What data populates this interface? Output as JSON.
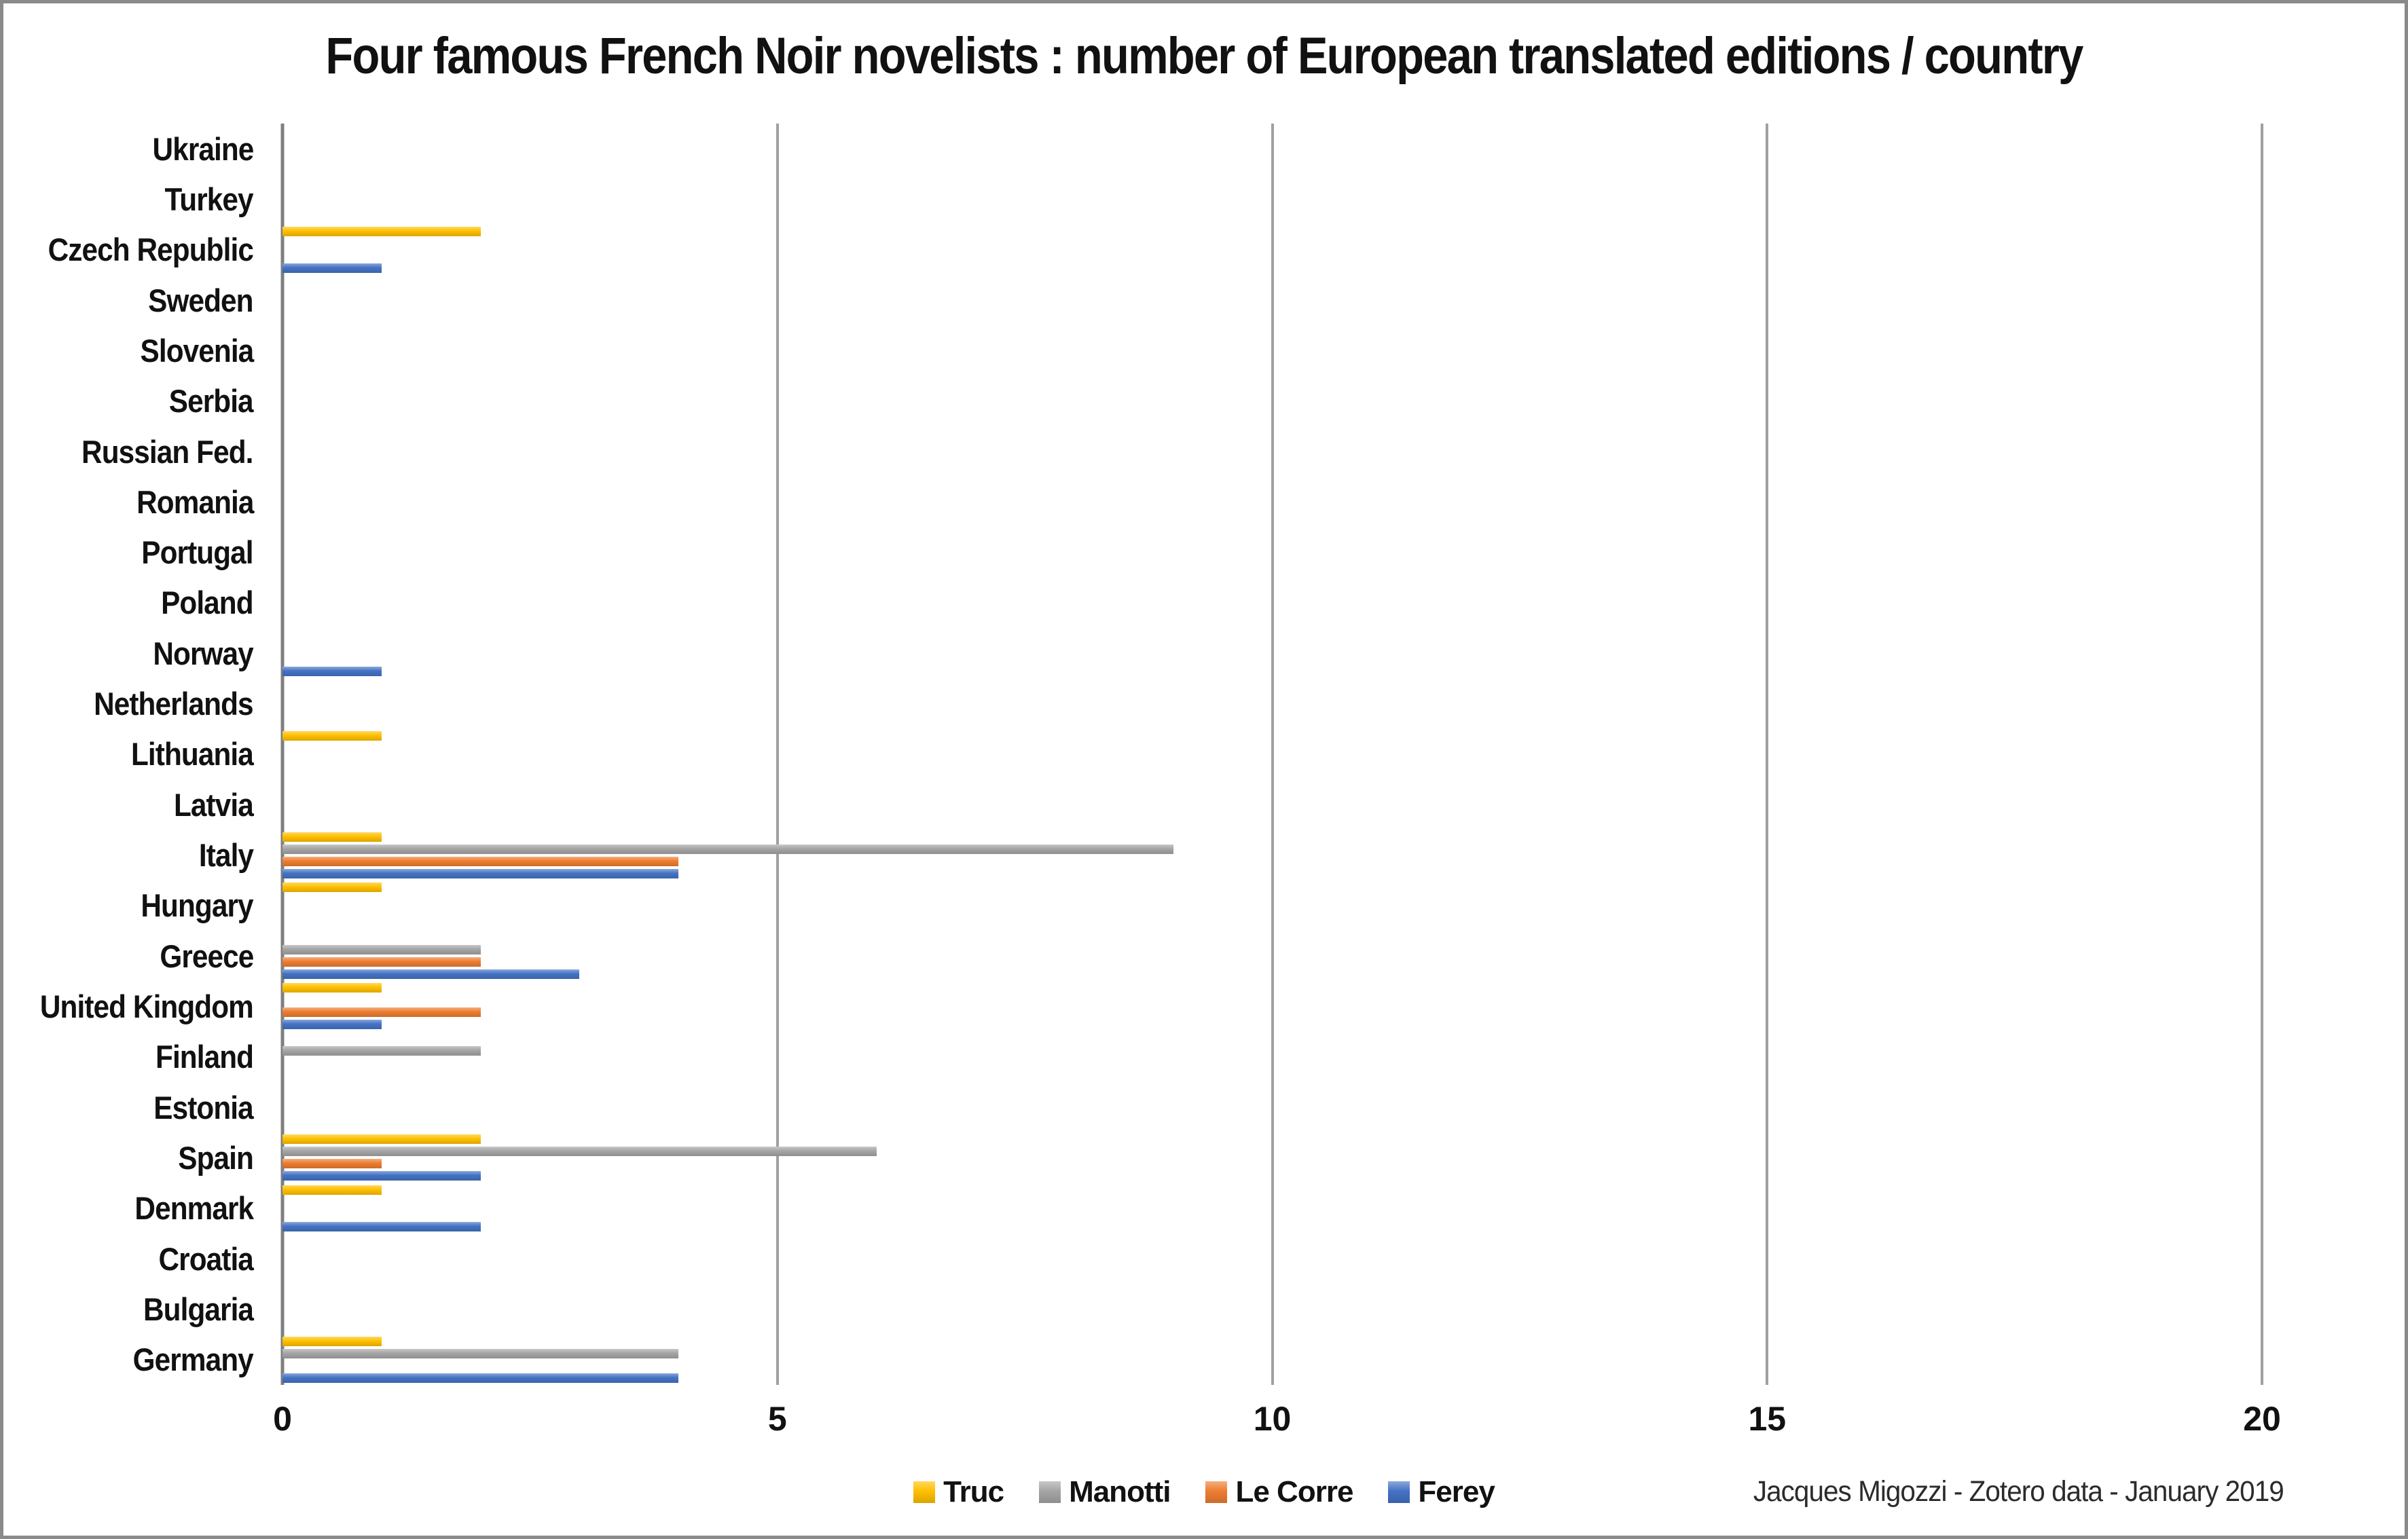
{
  "title": "Four famous French Noir novelists : number of European translated editions / country",
  "attribution": "Jacques Migozzi - Zotero data - January 2019",
  "colors": {
    "truc": "#FFC000",
    "manotti": "#A5A5A5",
    "le_corre": "#ED7D31",
    "ferey": "#4472C4",
    "gridline": "#A0A0A0",
    "axis_line": "#7F7F7F",
    "frame_border": "#8A8A8A"
  },
  "chart_data": {
    "type": "bar",
    "orientation": "horizontal",
    "title": "Four famous French Noir novelists : number of European translated editions / country",
    "xlabel": "",
    "ylabel": "",
    "xlim": [
      0,
      20
    ],
    "x_ticks": [
      0,
      5,
      10,
      15,
      20
    ],
    "grid": "vertical",
    "legend_position": "bottom-center",
    "categories": [
      "Ukraine",
      "Turkey",
      "Czech Republic",
      "Sweden",
      "Slovenia",
      "Serbia",
      "Russian Fed.",
      "Romania",
      "Portugal",
      "Poland",
      "Norway",
      "Netherlands",
      "Lithuania",
      "Latvia",
      "Italy",
      "Hungary",
      "Greece",
      "United Kingdom",
      "Finland",
      "Estonia",
      "Spain",
      "Denmark",
      "Croatia",
      "Bulgaria",
      "Germany"
    ],
    "series": [
      {
        "name": "Truc",
        "color": "#FFC000",
        "values": [
          0,
          0,
          2,
          0,
          0,
          0,
          0,
          0,
          0,
          0,
          0,
          0,
          1,
          0,
          1,
          1,
          0,
          1,
          0,
          0,
          2,
          1,
          0,
          0,
          1
        ]
      },
      {
        "name": "Manotti",
        "color": "#A5A5A5",
        "values": [
          0,
          0,
          0,
          0,
          0,
          0,
          0,
          0,
          0,
          0,
          0,
          0,
          0,
          0,
          9,
          0,
          2,
          0,
          2,
          0,
          6,
          0,
          0,
          0,
          4
        ]
      },
      {
        "name": "Le Corre",
        "color": "#ED7D31",
        "values": [
          0,
          0,
          0,
          0,
          0,
          0,
          0,
          0,
          0,
          0,
          0,
          0,
          0,
          0,
          4,
          0,
          2,
          2,
          0,
          0,
          1,
          0,
          0,
          0,
          0
        ]
      },
      {
        "name": "Ferey",
        "color": "#4472C4",
        "values": [
          0,
          0,
          1,
          0,
          0,
          0,
          0,
          0,
          0,
          0,
          1,
          0,
          0,
          0,
          4,
          0,
          3,
          1,
          0,
          0,
          2,
          2,
          0,
          0,
          4
        ]
      }
    ]
  }
}
